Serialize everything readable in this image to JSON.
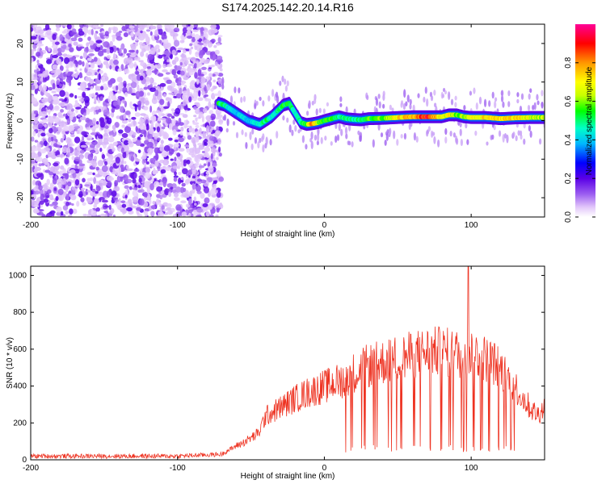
{
  "title": "S174.2025.142.20.14.R16",
  "colors": {
    "snr_line": "#ee3322",
    "frame": "#000000",
    "colormap": [
      "#ffffff",
      "#e3c8fa",
      "#9b5cf0",
      "#5a00e6",
      "#0000ff",
      "#00b7ff",
      "#00ffc8",
      "#00ff00",
      "#c8ff00",
      "#ffff00",
      "#ff9600",
      "#ff0000",
      "#ff0096"
    ]
  },
  "chart_data": [
    {
      "type": "heatmap",
      "xlabel": "Height of straight line (km)",
      "ylabel": "Frequency (Hz)",
      "xlim": [
        -200,
        150
      ],
      "ylim": [
        -25,
        25
      ],
      "xticks": [
        -200,
        -100,
        0,
        100
      ],
      "yticks": [
        -20,
        -10,
        0,
        10,
        20
      ],
      "colorbar": {
        "label": "Normalized spectral amplitude",
        "range": [
          0,
          1
        ],
        "ticks": [
          "0.0",
          "0.2",
          "0.4",
          "0.6",
          "0.8"
        ]
      },
      "noise_region": {
        "x": [
          -200,
          -70
        ],
        "y": [
          -25,
          25
        ],
        "amplitude_range": [
          0.0,
          0.15
        ]
      },
      "ridge": {
        "x": [
          -72,
          -68,
          -64,
          -60,
          -56,
          -52,
          -48,
          -44,
          -40,
          -36,
          -32,
          -28,
          -24,
          -20,
          -16,
          -12,
          -8,
          -4,
          0,
          5,
          10,
          15,
          20,
          25,
          30,
          40,
          50,
          60,
          70,
          80,
          85,
          90,
          95,
          100,
          110,
          120,
          130,
          140,
          150
        ],
        "frequency": [
          4.5,
          4,
          3,
          2,
          1,
          0,
          -0.5,
          -1,
          0,
          1,
          2.5,
          4,
          4.5,
          2,
          -0.5,
          -1,
          -0.8,
          -0.5,
          0,
          0.5,
          1,
          0.5,
          0.3,
          0.2,
          0.5,
          0.6,
          0.8,
          1,
          1,
          1,
          1.5,
          1.5,
          1,
          0.8,
          0.8,
          0.5,
          0.7,
          0.8,
          0.8
        ],
        "amplitude": [
          0.55,
          0.5,
          0.45,
          0.4,
          0.45,
          0.4,
          0.45,
          0.5,
          0.55,
          0.45,
          0.5,
          0.55,
          0.6,
          0.45,
          0.5,
          0.6,
          0.85,
          0.6,
          0.55,
          0.6,
          0.5,
          0.55,
          0.5,
          0.55,
          0.6,
          0.6,
          0.75,
          0.8,
          0.95,
          0.7,
          0.75,
          0.6,
          0.65,
          0.7,
          0.75,
          0.8,
          0.75,
          0.7,
          0.65
        ]
      }
    },
    {
      "type": "line",
      "xlabel": "Height of straight line (km)",
      "ylabel": "SNR (10 * v/v)",
      "xlim": [
        -200,
        150
      ],
      "ylim": [
        0,
        1050
      ],
      "xticks": [
        -200,
        -100,
        0,
        100
      ],
      "yticks": [
        0,
        200,
        400,
        600,
        800,
        1000
      ],
      "series": [
        {
          "envelope_x": [
            -200,
            -150,
            -100,
            -70,
            -60,
            -55,
            -45,
            -40,
            -30,
            -20,
            -10,
            0,
            10,
            20,
            30,
            40,
            50,
            60,
            70,
            80,
            90,
            95,
            100,
            110,
            115,
            120,
            125,
            130,
            135,
            140,
            145,
            150
          ],
          "envelope_y": [
            20,
            20,
            20,
            30,
            80,
            100,
            150,
            250,
            300,
            350,
            390,
            420,
            450,
            500,
            540,
            560,
            580,
            600,
            620,
            620,
            610,
            600,
            620,
            580,
            560,
            520,
            470,
            420,
            360,
            300,
            260,
            300
          ],
          "dropouts_start": 12,
          "dropouts_end": 133,
          "dropout_floor": 40,
          "peak": {
            "x": 98,
            "y": 1050
          }
        }
      ]
    }
  ]
}
